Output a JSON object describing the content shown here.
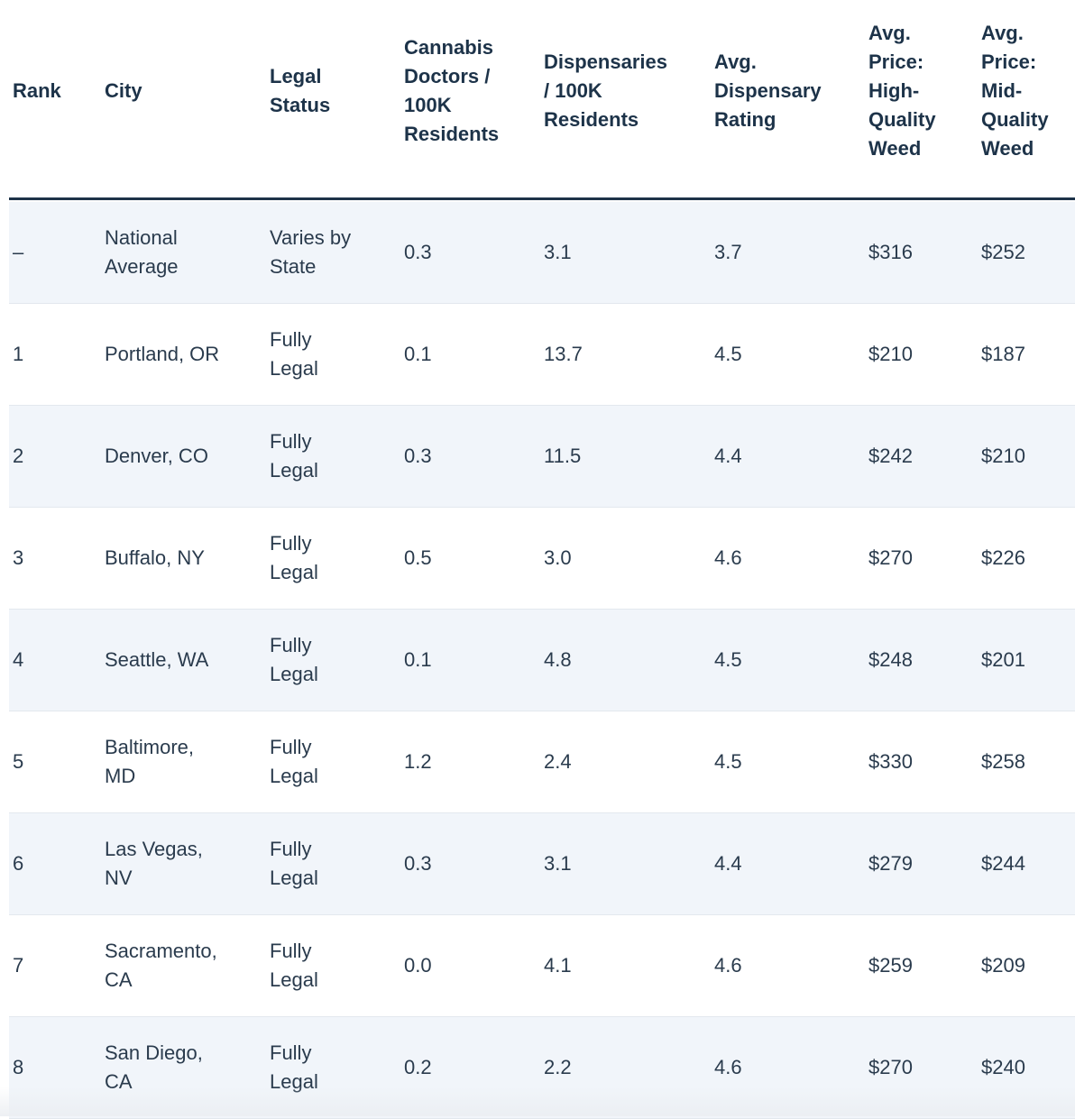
{
  "table": {
    "headers": [
      "Rank",
      "City",
      "Legal\nStatus",
      "Cannabis\nDoctors /\n100K\nResidents",
      "Dispensaries\n/ 100K\nResidents",
      "Avg.\nDispensary\nRating",
      "Avg.\nPrice:\nHigh-\nQuality\nWeed",
      "Avg.\nPrice:\nMid-\nQuality\nWeed"
    ],
    "rows": [
      {
        "rank": "–",
        "city": "National\nAverage",
        "legal": "Varies by\nState",
        "doctors": "0.3",
        "dispensaries": "3.1",
        "rating": "3.7",
        "high": "$316",
        "mid": "$252"
      },
      {
        "rank": "1",
        "city": "Portland, OR",
        "legal": "Fully\nLegal",
        "doctors": "0.1",
        "dispensaries": "13.7",
        "rating": "4.5",
        "high": "$210",
        "mid": "$187"
      },
      {
        "rank": "2",
        "city": "Denver, CO",
        "legal": "Fully\nLegal",
        "doctors": "0.3",
        "dispensaries": "11.5",
        "rating": "4.4",
        "high": "$242",
        "mid": "$210"
      },
      {
        "rank": "3",
        "city": "Buffalo, NY",
        "legal": "Fully\nLegal",
        "doctors": "0.5",
        "dispensaries": "3.0",
        "rating": "4.6",
        "high": "$270",
        "mid": "$226"
      },
      {
        "rank": "4",
        "city": "Seattle, WA",
        "legal": "Fully\nLegal",
        "doctors": "0.1",
        "dispensaries": "4.8",
        "rating": "4.5",
        "high": "$248",
        "mid": "$201"
      },
      {
        "rank": "5",
        "city": "Baltimore,\nMD",
        "legal": "Fully\nLegal",
        "doctors": "1.2",
        "dispensaries": "2.4",
        "rating": "4.5",
        "high": "$330",
        "mid": "$258"
      },
      {
        "rank": "6",
        "city": "Las Vegas,\nNV",
        "legal": "Fully\nLegal",
        "doctors": "0.3",
        "dispensaries": "3.1",
        "rating": "4.4",
        "high": "$279",
        "mid": "$244"
      },
      {
        "rank": "7",
        "city": "Sacramento,\nCA",
        "legal": "Fully\nLegal",
        "doctors": "0.0",
        "dispensaries": "4.1",
        "rating": "4.6",
        "high": "$259",
        "mid": "$209"
      },
      {
        "rank": "8",
        "city": "San Diego,\nCA",
        "legal": "Fully\nLegal",
        "doctors": "0.2",
        "dispensaries": "2.2",
        "rating": "4.6",
        "high": "$270",
        "mid": "$240"
      }
    ]
  },
  "colors": {
    "header_text": "#1d3349",
    "divider": "#1d3349",
    "row_alt_background": "#f1f5fa",
    "body_text": "#2a3b4d"
  }
}
